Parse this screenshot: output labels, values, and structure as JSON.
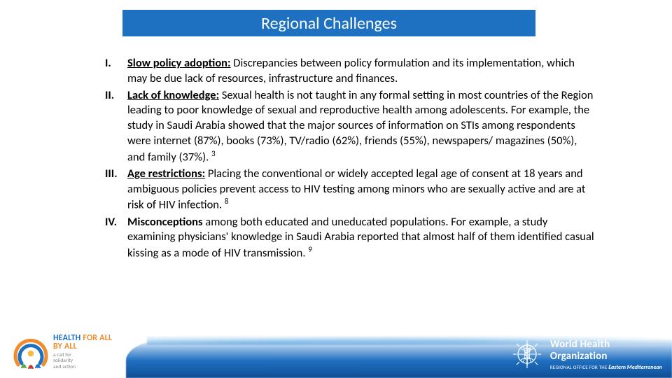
{
  "title": "Regional Challenges",
  "title_bg": "#1e70c1",
  "title_color": "#ffffff",
  "items": [
    {
      "num": "I.",
      "lead": "Slow policy adoption:",
      "lead_underline": true,
      "body": " Discrepancies between policy formulation and its implementation, which may be due lack of resources, infrastructure and finances."
    },
    {
      "num": "II.",
      "lead": "Lack of knowledge:",
      "lead_underline": true,
      "body": " Sexual health is not taught in any formal setting in most countries of the Region leading to poor knowledge of sexual and reproductive health among adolescents. For example, the study in Saudi Arabia showed that the major sources of information on STIs among respondents were internet (87%), books (73%), TV/radio (62%),  friends (55%), newspapers/ magazines (50%), and family (37%). ",
      "sup": "3"
    },
    {
      "num": "III.",
      "lead": "Age restrictions:",
      "lead_underline": true,
      "body": " Placing the conventional or widely accepted legal age of consent at 18 years and ambiguous policies prevent access to HIV testing among minors who are sexually active and are at risk of HIV infection. ",
      "sup": "8"
    },
    {
      "num": "IV.",
      "lead": "Misconceptions",
      "lead_underline": false,
      "body": " among both educated and uneducated populations. For example, a study examining physicians' knowledge in Saudi Arabia reported that almost half of them identified casual kissing as a mode of HIV transmission. ",
      "sup": "9"
    }
  ],
  "hfa": {
    "line1a": "HEALTH ",
    "line1b": "FOR ALL",
    "line2a": "BY ALL",
    "sub": "a call for\nsolidarity\nand action",
    "arc_colors": {
      "outer": "#f08c2e",
      "inner": "#1e70c1",
      "dot": "#f5b843"
    }
  },
  "who": {
    "line1": "World Health",
    "line2": "Organization",
    "sub_small": "REGIONAL OFFICE FOR THE",
    "sub_region": " Eastern Mediterranean",
    "emblem_color": "#ffffff"
  }
}
